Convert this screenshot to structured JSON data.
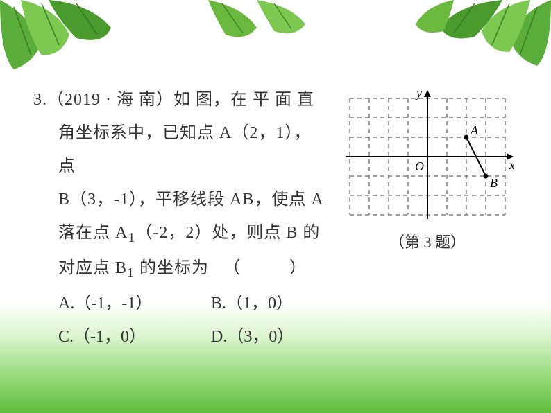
{
  "question": {
    "number": "3.",
    "source": "（2019 · 海 南）",
    "line1_rest": "如 图，在 平 面 直",
    "line2": "角坐标系中，已知点 A（2，1），点",
    "line3": "B（3，-1），平移线段 AB，使点 A",
    "line4_part1": "落在点 A",
    "line4_sub1": "1",
    "line4_part2": "（-2，2）处，则点 B 的",
    "line5_part1": "对应点 B",
    "line5_sub1": "1",
    "line5_part2": " 的坐标为",
    "paren_open": "（",
    "paren_close": "）"
  },
  "options": {
    "A": "A.（-1，-1）",
    "B": "B.（1，0）",
    "C": "C.（-1，0）",
    "D": "D.（3，0）"
  },
  "figure": {
    "caption": "（第 3 题）",
    "grid": {
      "cols": 8,
      "rows": 6,
      "cell_size": 28,
      "origin_col": 4,
      "origin_row": 3,
      "dash_color": "#666666",
      "axis_color": "#000000",
      "y_label": "y",
      "x_label": "x",
      "o_label": "O",
      "A_label": "A",
      "B_label": "B",
      "A_point": [
        2,
        1
      ],
      "B_point": [
        3,
        -1
      ],
      "line_width": 2
    }
  },
  "style": {
    "bg_color": "#ffffff",
    "text_color": "#333333",
    "font_size": 24,
    "leaf_green": "#4a9a2e",
    "leaf_green_light": "#7cc850",
    "gradient_green": "#8edc64"
  }
}
